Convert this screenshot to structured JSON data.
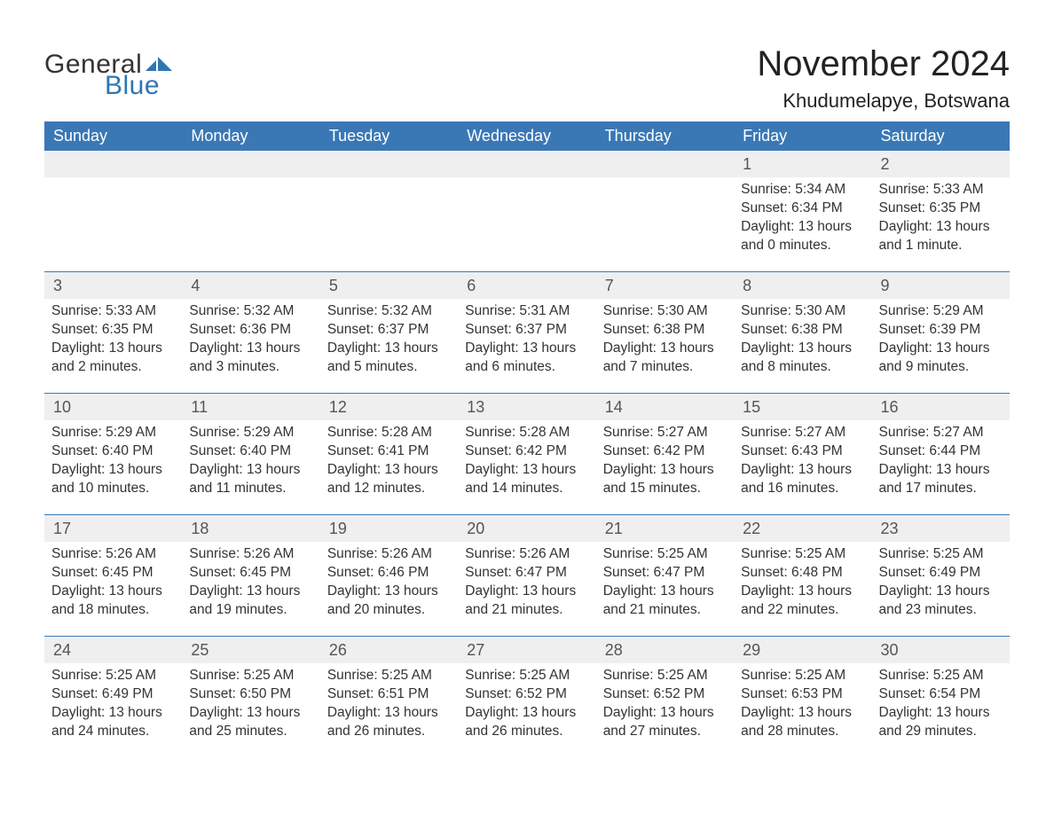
{
  "brand": {
    "word1": "General",
    "word2": "Blue",
    "accent_color": "#2e75b6"
  },
  "title": "November 2024",
  "location": "Khudumelapye, Botswana",
  "colors": {
    "header_bg": "#3a78b5",
    "header_text": "#ffffff",
    "row_divider": "#3a78b5",
    "daynum_bg": "#efefef",
    "body_text": "#333333",
    "page_bg": "#ffffff"
  },
  "typography": {
    "title_fontsize": 40,
    "location_fontsize": 22,
    "th_fontsize": 18,
    "daynum_fontsize": 18,
    "cell_fontsize": 15.5
  },
  "weekdays": [
    "Sunday",
    "Monday",
    "Tuesday",
    "Wednesday",
    "Thursday",
    "Friday",
    "Saturday"
  ],
  "weeks": [
    {
      "nums": [
        "",
        "",
        "",
        "",
        "",
        "1",
        "2"
      ],
      "data": [
        [
          "",
          "",
          "",
          ""
        ],
        [
          "",
          "",
          "",
          ""
        ],
        [
          "",
          "",
          "",
          ""
        ],
        [
          "",
          "",
          "",
          ""
        ],
        [
          "",
          "",
          "",
          ""
        ],
        [
          "Sunrise: 5:34 AM",
          "Sunset: 6:34 PM",
          "Daylight: 13 hours",
          "and 0 minutes."
        ],
        [
          "Sunrise: 5:33 AM",
          "Sunset: 6:35 PM",
          "Daylight: 13 hours",
          "and 1 minute."
        ]
      ]
    },
    {
      "nums": [
        "3",
        "4",
        "5",
        "6",
        "7",
        "8",
        "9"
      ],
      "data": [
        [
          "Sunrise: 5:33 AM",
          "Sunset: 6:35 PM",
          "Daylight: 13 hours",
          "and 2 minutes."
        ],
        [
          "Sunrise: 5:32 AM",
          "Sunset: 6:36 PM",
          "Daylight: 13 hours",
          "and 3 minutes."
        ],
        [
          "Sunrise: 5:32 AM",
          "Sunset: 6:37 PM",
          "Daylight: 13 hours",
          "and 5 minutes."
        ],
        [
          "Sunrise: 5:31 AM",
          "Sunset: 6:37 PM",
          "Daylight: 13 hours",
          "and 6 minutes."
        ],
        [
          "Sunrise: 5:30 AM",
          "Sunset: 6:38 PM",
          "Daylight: 13 hours",
          "and 7 minutes."
        ],
        [
          "Sunrise: 5:30 AM",
          "Sunset: 6:38 PM",
          "Daylight: 13 hours",
          "and 8 minutes."
        ],
        [
          "Sunrise: 5:29 AM",
          "Sunset: 6:39 PM",
          "Daylight: 13 hours",
          "and 9 minutes."
        ]
      ]
    },
    {
      "nums": [
        "10",
        "11",
        "12",
        "13",
        "14",
        "15",
        "16"
      ],
      "data": [
        [
          "Sunrise: 5:29 AM",
          "Sunset: 6:40 PM",
          "Daylight: 13 hours",
          "and 10 minutes."
        ],
        [
          "Sunrise: 5:29 AM",
          "Sunset: 6:40 PM",
          "Daylight: 13 hours",
          "and 11 minutes."
        ],
        [
          "Sunrise: 5:28 AM",
          "Sunset: 6:41 PM",
          "Daylight: 13 hours",
          "and 12 minutes."
        ],
        [
          "Sunrise: 5:28 AM",
          "Sunset: 6:42 PM",
          "Daylight: 13 hours",
          "and 14 minutes."
        ],
        [
          "Sunrise: 5:27 AM",
          "Sunset: 6:42 PM",
          "Daylight: 13 hours",
          "and 15 minutes."
        ],
        [
          "Sunrise: 5:27 AM",
          "Sunset: 6:43 PM",
          "Daylight: 13 hours",
          "and 16 minutes."
        ],
        [
          "Sunrise: 5:27 AM",
          "Sunset: 6:44 PM",
          "Daylight: 13 hours",
          "and 17 minutes."
        ]
      ]
    },
    {
      "nums": [
        "17",
        "18",
        "19",
        "20",
        "21",
        "22",
        "23"
      ],
      "data": [
        [
          "Sunrise: 5:26 AM",
          "Sunset: 6:45 PM",
          "Daylight: 13 hours",
          "and 18 minutes."
        ],
        [
          "Sunrise: 5:26 AM",
          "Sunset: 6:45 PM",
          "Daylight: 13 hours",
          "and 19 minutes."
        ],
        [
          "Sunrise: 5:26 AM",
          "Sunset: 6:46 PM",
          "Daylight: 13 hours",
          "and 20 minutes."
        ],
        [
          "Sunrise: 5:26 AM",
          "Sunset: 6:47 PM",
          "Daylight: 13 hours",
          "and 21 minutes."
        ],
        [
          "Sunrise: 5:25 AM",
          "Sunset: 6:47 PM",
          "Daylight: 13 hours",
          "and 21 minutes."
        ],
        [
          "Sunrise: 5:25 AM",
          "Sunset: 6:48 PM",
          "Daylight: 13 hours",
          "and 22 minutes."
        ],
        [
          "Sunrise: 5:25 AM",
          "Sunset: 6:49 PM",
          "Daylight: 13 hours",
          "and 23 minutes."
        ]
      ]
    },
    {
      "nums": [
        "24",
        "25",
        "26",
        "27",
        "28",
        "29",
        "30"
      ],
      "data": [
        [
          "Sunrise: 5:25 AM",
          "Sunset: 6:49 PM",
          "Daylight: 13 hours",
          "and 24 minutes."
        ],
        [
          "Sunrise: 5:25 AM",
          "Sunset: 6:50 PM",
          "Daylight: 13 hours",
          "and 25 minutes."
        ],
        [
          "Sunrise: 5:25 AM",
          "Sunset: 6:51 PM",
          "Daylight: 13 hours",
          "and 26 minutes."
        ],
        [
          "Sunrise: 5:25 AM",
          "Sunset: 6:52 PM",
          "Daylight: 13 hours",
          "and 26 minutes."
        ],
        [
          "Sunrise: 5:25 AM",
          "Sunset: 6:52 PM",
          "Daylight: 13 hours",
          "and 27 minutes."
        ],
        [
          "Sunrise: 5:25 AM",
          "Sunset: 6:53 PM",
          "Daylight: 13 hours",
          "and 28 minutes."
        ],
        [
          "Sunrise: 5:25 AM",
          "Sunset: 6:54 PM",
          "Daylight: 13 hours",
          "and 29 minutes."
        ]
      ]
    }
  ]
}
